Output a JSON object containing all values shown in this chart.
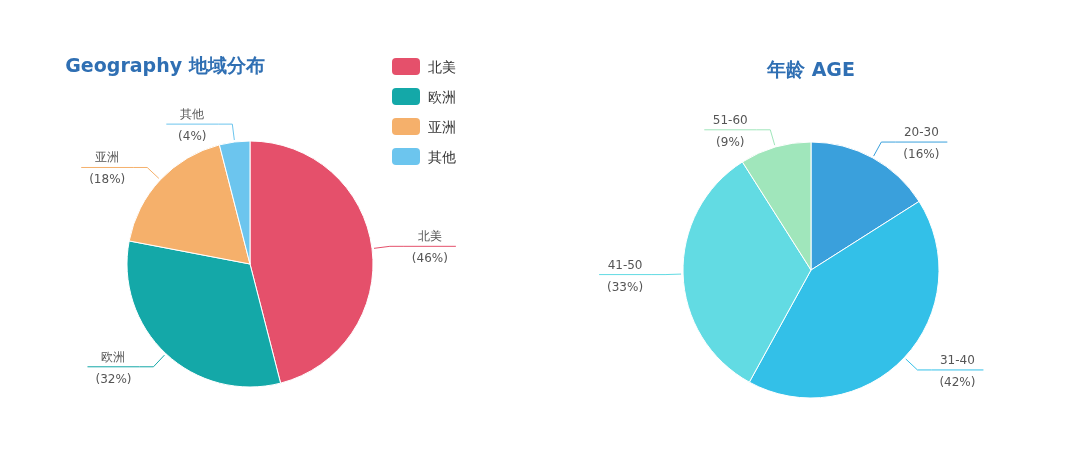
{
  "chart_data": [
    {
      "type": "pie",
      "title": "Geography  地域分布",
      "categories": [
        "北美",
        "欧洲",
        "亚洲",
        "其他"
      ],
      "values": [
        46,
        32,
        18,
        4
      ],
      "value_labels": [
        "(46%)",
        "(32%)",
        "(18%)",
        "(4%)"
      ],
      "colors": [
        "#e5506b",
        "#14a8a8",
        "#f5b06b",
        "#6cc5ee"
      ],
      "legend": "top right"
    },
    {
      "type": "pie",
      "title": "年龄 AGE",
      "categories": [
        "20-30",
        "31-40",
        "41-50",
        "51-60"
      ],
      "values": [
        16,
        42,
        33,
        9
      ],
      "value_labels": [
        "(16%)",
        "(42%)",
        "(33%)",
        "(9%)"
      ],
      "colors": [
        "#3aa0dc",
        "#33c0e8",
        "#62dbe3",
        "#a0e6bb"
      ]
    }
  ]
}
